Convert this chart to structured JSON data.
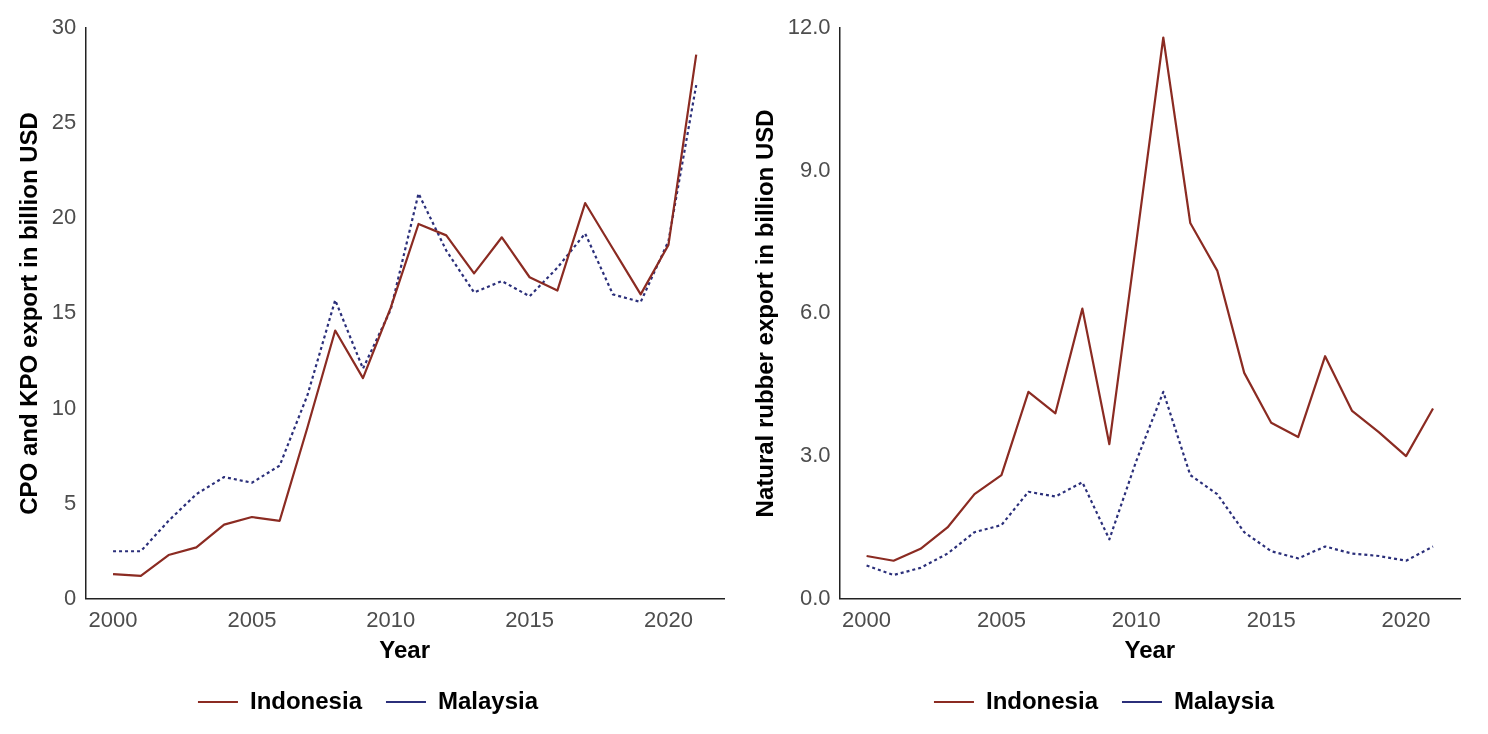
{
  "chart_data": [
    {
      "type": "line",
      "xlabel": "Year",
      "ylabel": "CPO and KPO export in billion USD",
      "x": [
        2000,
        2001,
        2002,
        2003,
        2004,
        2005,
        2006,
        2007,
        2008,
        2009,
        2010,
        2011,
        2012,
        2013,
        2014,
        2015,
        2016,
        2017,
        2018,
        2019,
        2020,
        2021
      ],
      "xlim": [
        1999,
        2022
      ],
      "xticks": [
        2000,
        2005,
        2010,
        2015,
        2020
      ],
      "ylim": [
        0,
        30
      ],
      "yticks": [
        0,
        5,
        10,
        15,
        20,
        25,
        30
      ],
      "grid": false,
      "legend": "bottom",
      "marker": "none",
      "series": [
        {
          "name": "Indonesia",
          "color": "#8b2b22",
          "line_style": "solid",
          "values": [
            1.3,
            1.2,
            2.3,
            2.7,
            3.9,
            4.3,
            4.1,
            9.0,
            14.1,
            11.6,
            15.3,
            19.7,
            19.1,
            17.1,
            19.0,
            16.9,
            16.2,
            20.8,
            18.4,
            16.0,
            18.6,
            28.6
          ]
        },
        {
          "name": "Malaysia",
          "color": "#2b2f7a",
          "line_style": "dotted",
          "values": [
            2.5,
            2.5,
            4.1,
            5.5,
            6.4,
            6.1,
            7.0,
            10.7,
            15.7,
            12.1,
            15.2,
            21.3,
            18.3,
            16.1,
            16.7,
            15.9,
            17.4,
            19.2,
            16.0,
            15.6,
            18.8,
            27.0
          ]
        }
      ]
    },
    {
      "type": "line",
      "xlabel": "Year",
      "ylabel": "Natural rubber export in billion USD",
      "x": [
        2000,
        2001,
        2002,
        2003,
        2004,
        2005,
        2006,
        2007,
        2008,
        2009,
        2010,
        2011,
        2012,
        2013,
        2014,
        2015,
        2016,
        2017,
        2018,
        2019,
        2020,
        2021
      ],
      "xlim": [
        1999,
        2022
      ],
      "xticks": [
        2000,
        2005,
        2010,
        2015,
        2020
      ],
      "ylim": [
        0,
        12
      ],
      "yticks": [
        {
          "value": 0,
          "label": "0.0"
        },
        {
          "value": 3,
          "label": "3.0"
        },
        {
          "value": 6,
          "label": "6.0"
        },
        {
          "value": 9,
          "label": "9.0"
        },
        {
          "value": 12,
          "label": "12.0"
        }
      ],
      "grid": false,
      "legend": "bottom",
      "marker": "none",
      "series": [
        {
          "name": "Indonesia",
          "color": "#8b2b22",
          "line_style": "solid",
          "values": [
            0.9,
            0.8,
            1.05,
            1.5,
            2.2,
            2.6,
            4.35,
            3.9,
            6.1,
            3.25,
            7.5,
            11.8,
            7.9,
            6.9,
            4.75,
            3.7,
            3.4,
            5.1,
            3.95,
            3.5,
            3.0,
            4.0
          ]
        },
        {
          "name": "Malaysia",
          "color": "#2b2f7a",
          "line_style": "dotted",
          "values": [
            0.7,
            0.5,
            0.65,
            0.95,
            1.4,
            1.55,
            2.25,
            2.15,
            2.45,
            1.25,
            2.9,
            4.35,
            2.6,
            2.2,
            1.4,
            1.0,
            0.85,
            1.1,
            0.95,
            0.9,
            0.8,
            1.1
          ]
        }
      ]
    }
  ]
}
